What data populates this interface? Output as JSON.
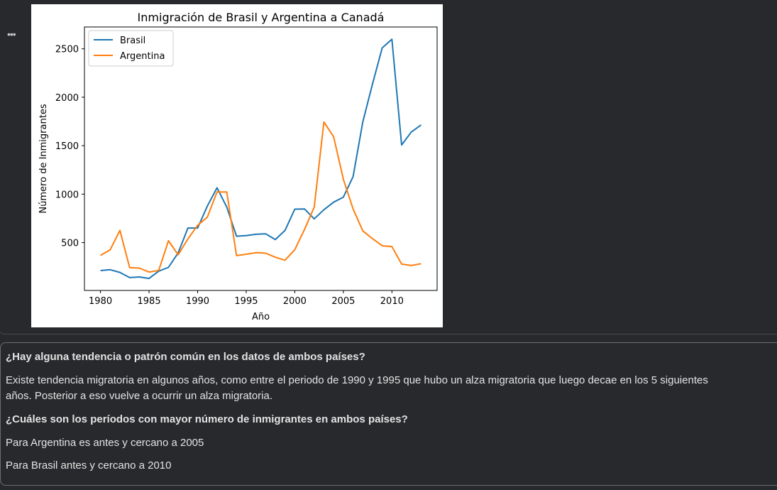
{
  "cell_menu": "•••",
  "chart_data": {
    "type": "line",
    "title": "Inmigración de Brasil y Argentina a Canadá",
    "xlabel": "Año",
    "ylabel": "Número de Inmigrantes",
    "x": [
      1980,
      1981,
      1982,
      1983,
      1984,
      1985,
      1986,
      1987,
      1988,
      1989,
      1990,
      1991,
      1992,
      1993,
      1994,
      1995,
      1996,
      1997,
      1998,
      1999,
      2000,
      2001,
      2002,
      2003,
      2004,
      2005,
      2006,
      2007,
      2008,
      2009,
      2010,
      2011,
      2012,
      2013
    ],
    "series": [
      {
        "name": "Brasil",
        "color": "#1f77b4",
        "values": [
          211,
          220,
          192,
          139,
          145,
          130,
          205,
          244,
          394,
          650,
          650,
          877,
          1066,
          866,
          566,
          572,
          586,
          591,
          531,
          626,
          845,
          847,
          745,
          839,
          917,
          969,
          1181,
          1746,
          2138,
          2509,
          2598,
          1508,
          1642,
          1714
        ]
      },
      {
        "name": "Argentina",
        "color": "#ff7f0e",
        "values": [
          368,
          426,
          626,
          241,
          237,
          196,
          213,
          519,
          374,
          538,
          678,
          763,
          1023,
          1022,
          366,
          380,
          396,
          391,
          349,
          318,
          427,
          635,
          865,
          1745,
          1591,
          1153,
          847,
          620,
          540,
          467,
          459,
          278,
          263,
          282
        ]
      }
    ],
    "xlim": [
      1978.35,
      2014.65
    ],
    "ylim": [
      6,
      2725
    ],
    "xticks": [
      "1980",
      "1985",
      "1990",
      "1995",
      "2000",
      "2005",
      "2010"
    ],
    "yticks": [
      "500",
      "1000",
      "1500",
      "2000",
      "2500"
    ],
    "grid": false,
    "legend": "top-left"
  },
  "notes": {
    "q1": "¿Hay alguna tendencia o patrón común en los datos de ambos países?",
    "a1": "Existe tendencia migratoria en algunos años, como entre el periodo de 1990 y 1995 que hubo un alza migratoria que luego decae en los 5 siguientes años. Posterior a eso vuelve a ocurrir un alza migratoria.",
    "q2": "¿Cuáles son los períodos con mayor número de inmigrantes en ambos países?",
    "a2": "Para Argentina es antes y cercano a 2005",
    "a3": "Para Brasil antes y cercano a 2010"
  }
}
